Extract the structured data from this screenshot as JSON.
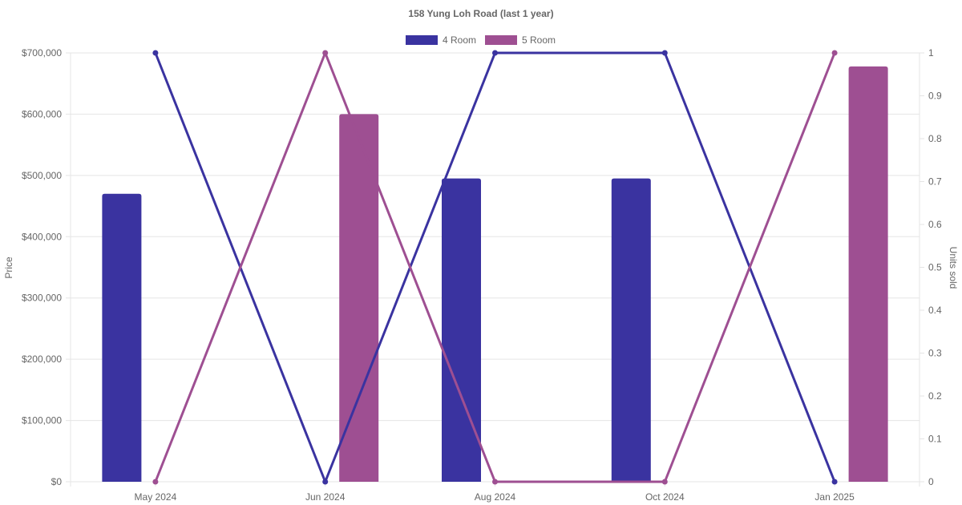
{
  "chart_data": {
    "type": "bar+line",
    "title": "158 Yung Loh Road (last 1 year)",
    "categories": [
      "May 2024",
      "Jun 2024",
      "Aug 2024",
      "Oct 2024",
      "Jan 2025"
    ],
    "ylabel_left": "Price",
    "ylabel_right": "Units sold",
    "ylim_left": [
      0,
      700000
    ],
    "ylim_right": [
      0,
      1
    ],
    "yticks_left": [
      "$0",
      "$100,000",
      "$200,000",
      "$300,000",
      "$400,000",
      "$500,000",
      "$600,000",
      "$700,000"
    ],
    "yticks_right": [
      "0",
      "0.1",
      "0.2",
      "0.3",
      "0.4",
      "0.5",
      "0.6",
      "0.7",
      "0.8",
      "0.9",
      "1"
    ],
    "legend_position": "top-center",
    "grid": true,
    "series": [
      {
        "name": "4 Room",
        "color": "#3a33a0",
        "bar_values": [
          470000,
          null,
          495000,
          495000,
          null
        ],
        "line_values": [
          1,
          0,
          1,
          1,
          0
        ]
      },
      {
        "name": "5 Room",
        "color": "#9e4f92",
        "bar_values": [
          null,
          600000,
          null,
          null,
          678000
        ],
        "line_values": [
          0,
          1,
          0,
          0,
          1
        ]
      }
    ]
  }
}
